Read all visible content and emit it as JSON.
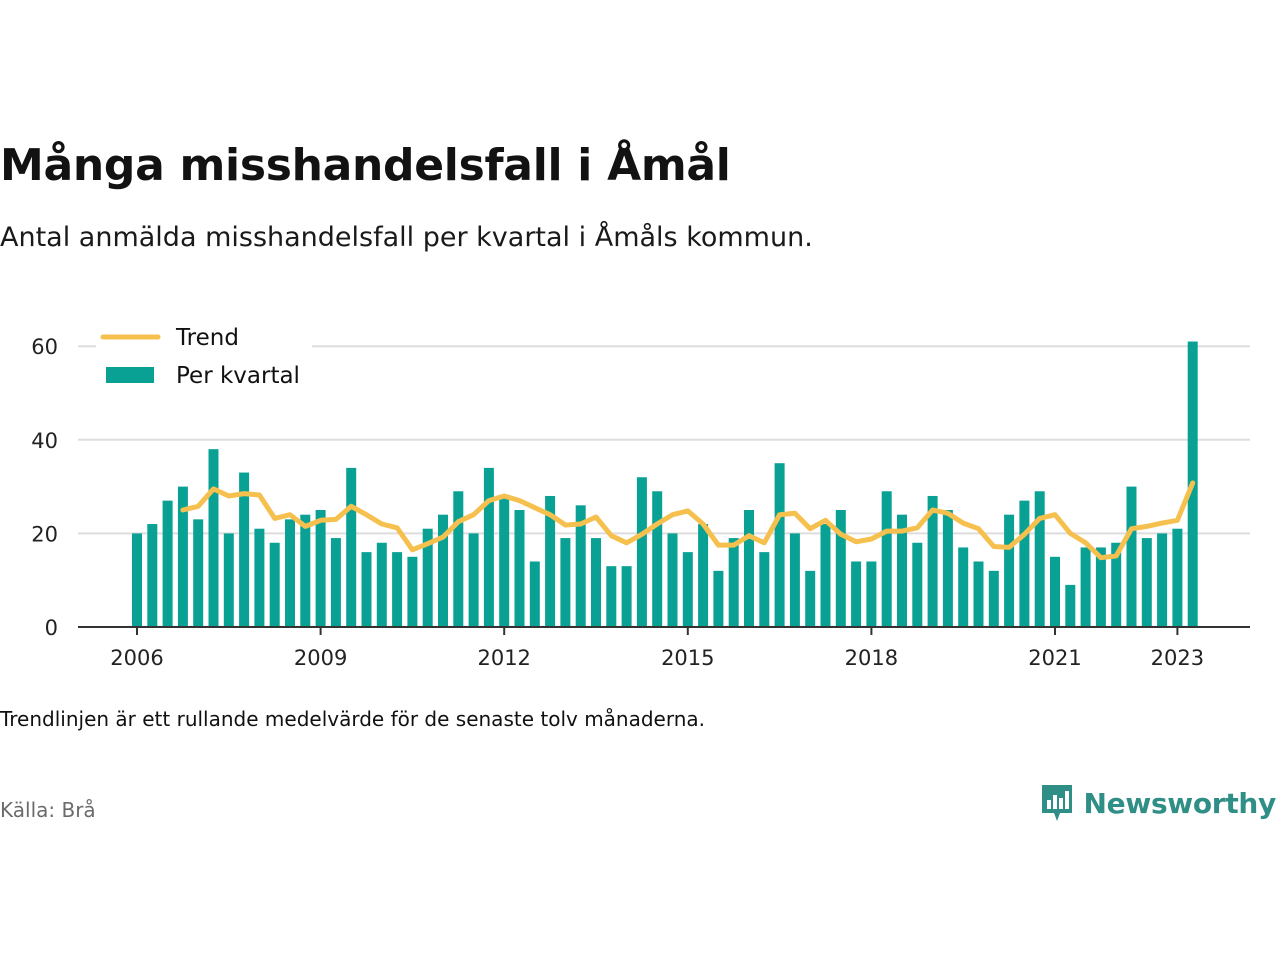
{
  "title": "Många misshandelsfall i Åmål",
  "subtitle": "Antal anmälda misshandelsfall per kvartal i Åmåls kommun.",
  "note": "Trendlinjen är ett rullande medelvärde för de senaste tolv månaderna.",
  "source": "Källa: Brå",
  "brand": {
    "name": "Newsworthy",
    "icon": "newsworthy-logo-icon",
    "color": "#2f8f86"
  },
  "colors": {
    "bars": "#0aa195",
    "trend": "#f6c04f",
    "grid": "#dddddd",
    "axis": "#333333"
  },
  "chart_data": {
    "type": "bar",
    "x_start": "2006 Q1",
    "xticks": [
      "2006",
      "2009",
      "2012",
      "2015",
      "2018",
      "2021",
      "2023"
    ],
    "yticks": [
      0,
      20,
      40,
      60
    ],
    "ylim": [
      0,
      65
    ],
    "grid": true,
    "legend_position": "top-left",
    "series": [
      {
        "name": "Per kvartal",
        "type": "bar",
        "values": [
          20,
          22,
          27,
          30,
          23,
          38,
          20,
          33,
          21,
          18,
          23,
          24,
          25,
          19,
          34,
          16,
          18,
          16,
          15,
          21,
          24,
          29,
          20,
          34,
          28,
          25,
          14,
          28,
          19,
          26,
          19,
          13,
          13,
          32,
          29,
          20,
          16,
          22,
          12,
          19,
          25,
          16,
          35,
          20,
          12,
          22,
          25,
          14,
          14,
          29,
          24,
          18,
          28,
          25,
          17,
          14,
          12,
          24,
          27,
          29,
          15,
          9,
          17,
          17,
          18,
          30,
          19,
          20,
          21,
          61
        ]
      },
      {
        "name": "Trend",
        "type": "line",
        "values": [
          null,
          null,
          null,
          25,
          25.8,
          29.5,
          28,
          28.5,
          28.2,
          23.2,
          24,
          21.5,
          22.8,
          23,
          25.8,
          24,
          22,
          21.2,
          16.5,
          17.8,
          19.2,
          22.5,
          24,
          27,
          28,
          27,
          25.5,
          24,
          21.8,
          22,
          23.5,
          19.5,
          18,
          19.8,
          22,
          24,
          24.8,
          22,
          17.5,
          17.5,
          19.5,
          18,
          24,
          24.3,
          21,
          22.8,
          19.8,
          18.2,
          18.8,
          20.5,
          20.5,
          21.2,
          25,
          24.3,
          22.2,
          21,
          17.2,
          17,
          19.8,
          23.2,
          24,
          20,
          18,
          14.8,
          15.2,
          21,
          21.5,
          22.2,
          22.8,
          30.8
        ]
      }
    ]
  }
}
